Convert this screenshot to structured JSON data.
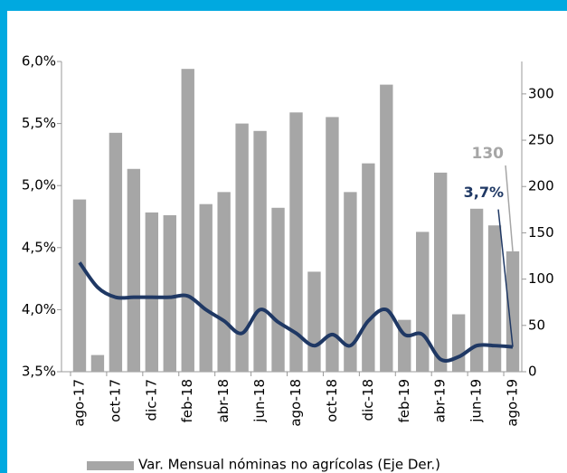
{
  "chart_data": {
    "type": "combo",
    "categories": [
      "ago-17",
      null,
      "oct-17",
      null,
      "dic-17",
      null,
      "feb-18",
      null,
      "abr-18",
      null,
      "jun-18",
      null,
      "ago-18",
      null,
      "oct-18",
      null,
      "dic-18",
      null,
      "feb-19",
      null,
      "abr-19",
      null,
      "jun-19",
      null,
      "ago-19"
    ],
    "series": [
      {
        "name": "Var. Mensual nóminas no agrícolas (Eje Der.)",
        "type": "bar",
        "axis": "y2",
        "color": "#a6a6a6",
        "values": [
          186,
          18,
          258,
          219,
          172,
          169,
          327,
          181,
          194,
          268,
          260,
          177,
          280,
          108,
          275,
          194,
          225,
          310,
          56,
          151,
          215,
          62,
          176,
          158,
          130
        ]
      },
      {
        "type": "line",
        "color": "#1f3864",
        "values": [
          4.38,
          4.18,
          4.1,
          4.1,
          4.1,
          4.1,
          4.11,
          4.0,
          3.91,
          3.81,
          4.0,
          3.9,
          3.81,
          3.71,
          3.8,
          3.71,
          3.91,
          4.0,
          3.8,
          3.8,
          3.6,
          3.62,
          3.71,
          3.71,
          3.7
        ],
        "value_labels": [
          null,
          null,
          null,
          null,
          null,
          null,
          null,
          null,
          null,
          null,
          null,
          null,
          null,
          null,
          null,
          null,
          null,
          null,
          null,
          null,
          null,
          null,
          null,
          null,
          "3,7%"
        ]
      }
    ],
    "ylim": [
      3.5,
      6.0
    ],
    "yticks": [
      {
        "value": 3.5,
        "label": "3,5%"
      },
      {
        "value": 4.0,
        "label": "4,0%"
      },
      {
        "value": 4.5,
        "label": "4,5%"
      },
      {
        "value": 5.0,
        "label": "5,0%"
      },
      {
        "value": 5.5,
        "label": "5,5%"
      },
      {
        "value": 6.0,
        "label": "6,0%"
      }
    ],
    "y2lim": [
      0,
      335
    ],
    "y2ticks": [
      0,
      50,
      100,
      150,
      200,
      250,
      300
    ],
    "grid": false
  }
}
